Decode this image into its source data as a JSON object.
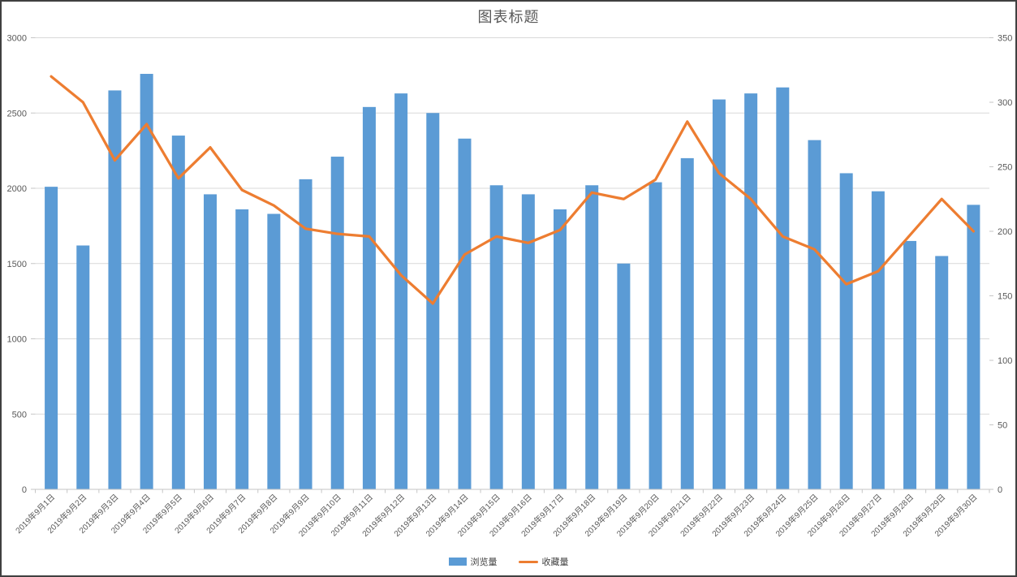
{
  "title": "图表标题",
  "legend": {
    "items": [
      {
        "label": "浏览量"
      },
      {
        "label": "收藏量"
      }
    ]
  },
  "colors": {
    "bar": "#5B9BD5",
    "line": "#ED7D31",
    "grid": "#D9D9D9",
    "axis": "#C6C6C6",
    "text": "#595959",
    "border": "#404040"
  },
  "chart_data": {
    "type": "bar",
    "subtype": "bar+line combo, dual y-axis",
    "title": "图表标题",
    "categories": [
      "2019年9月1日",
      "2019年9月2日",
      "2019年9月3日",
      "2019年9月4日",
      "2019年9月5日",
      "2019年9月6日",
      "2019年9月7日",
      "2019年9月8日",
      "2019年9月9日",
      "2019年9月10日",
      "2019年9月11日",
      "2019年9月12日",
      "2019年9月13日",
      "2019年9月14日",
      "2019年9月15日",
      "2019年9月16日",
      "2019年9月17日",
      "2019年9月18日",
      "2019年9月19日",
      "2019年9月20日",
      "2019年9月21日",
      "2019年9月22日",
      "2019年9月23日",
      "2019年9月24日",
      "2019年9月25日",
      "2019年9月26日",
      "2019年9月27日",
      "2019年9月28日",
      "2019年9月29日",
      "2019年9月30日"
    ],
    "series": [
      {
        "name": "浏览量",
        "type": "bar",
        "axis": "left",
        "color": "#5B9BD5",
        "values": [
          2010,
          1620,
          2650,
          2760,
          2350,
          1960,
          1860,
          1830,
          2060,
          2210,
          2540,
          2630,
          2500,
          2330,
          2020,
          1960,
          1860,
          2020,
          1500,
          2040,
          2200,
          2590,
          2630,
          2670,
          2320,
          2100,
          1980,
          1650,
          1550,
          1890
        ]
      },
      {
        "name": "收藏量",
        "type": "line",
        "axis": "right",
        "color": "#ED7D31",
        "values": [
          320,
          300,
          255,
          283,
          241,
          265,
          232,
          220,
          202,
          198,
          196,
          166,
          144,
          182,
          196,
          191,
          201,
          230,
          225,
          240,
          285,
          245,
          225,
          196,
          186,
          159,
          169,
          197,
          225,
          200
        ]
      }
    ],
    "left_axis": {
      "min": 0,
      "max": 3000,
      "step": 500,
      "tick_labels": [
        "0",
        "500",
        "1000",
        "1500",
        "2000",
        "2500",
        "3000"
      ]
    },
    "right_axis": {
      "min": 0,
      "max": 350,
      "step": 50,
      "tick_labels": [
        "0",
        "50",
        "100",
        "150",
        "200",
        "250",
        "300",
        "350"
      ]
    },
    "grid": true,
    "legend_position": "bottom"
  }
}
